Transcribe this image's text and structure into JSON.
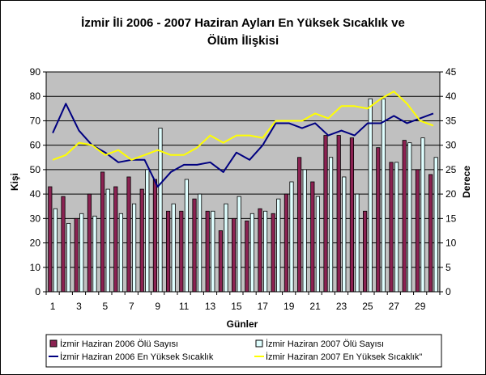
{
  "chart_data": {
    "type": "bar",
    "title_line1": "İzmir İli 2006 - 2007 Haziran Ayları En Yüksek Sıcaklık ve",
    "title_line2": "Ölüm İlişkisi",
    "xlabel": "Günler",
    "ylabel_left": "Kişi",
    "ylabel_right": "Derece",
    "ylim_left": [
      0,
      90
    ],
    "ylim_right": [
      0,
      45
    ],
    "y_ticks_left": [
      "0",
      "10",
      "20",
      "30",
      "40",
      "50",
      "60",
      "70",
      "80",
      "90"
    ],
    "y_ticks_right": [
      "0",
      "5",
      "10",
      "15",
      "20",
      "25",
      "30",
      "35",
      "40",
      "45"
    ],
    "x_ticks": [
      "1",
      "3",
      "5",
      "7",
      "9",
      "11",
      "13",
      "15",
      "17",
      "19",
      "21",
      "23",
      "25",
      "27",
      "29"
    ],
    "categories": [
      1,
      2,
      3,
      4,
      5,
      6,
      7,
      8,
      9,
      10,
      11,
      12,
      13,
      14,
      15,
      16,
      17,
      18,
      19,
      20,
      21,
      22,
      23,
      24,
      25,
      26,
      27,
      28,
      29,
      30
    ],
    "grid": true,
    "legend_position": "bottom",
    "series": [
      {
        "name": "İzmir Haziran 2006 Ölü Sayısı",
        "type": "bar",
        "axis": "left",
        "color": "#8B2252",
        "values": [
          43,
          39,
          30,
          40,
          49,
          43,
          47,
          42,
          46,
          33,
          33,
          38,
          33,
          25,
          30,
          29,
          34,
          32,
          40,
          55,
          45,
          64,
          64,
          63,
          33,
          59,
          53,
          62,
          50,
          48
        ]
      },
      {
        "name": "İzmir Haziran 2007 Ölü Sayısı",
        "type": "bar",
        "axis": "left",
        "color": "#E0FFFF",
        "values": [
          34,
          28,
          32,
          31,
          42,
          32,
          36,
          50,
          67,
          36,
          46,
          40,
          33,
          36,
          39,
          32,
          33,
          38,
          45,
          50,
          39,
          55,
          47,
          40,
          79,
          79,
          53,
          61,
          63,
          55
        ]
      },
      {
        "name": "İzmir Haziran 2006 En Yüksek Sıcaklık",
        "type": "line",
        "axis": "right",
        "color": "#000080",
        "values": [
          32.5,
          38.5,
          33,
          30,
          28.5,
          26.5,
          27,
          27,
          21.5,
          24.5,
          26,
          26,
          26.5,
          24.5,
          28.5,
          27,
          30,
          34.5,
          34.5,
          33.5,
          34.5,
          32,
          33,
          32,
          34.5,
          34.5,
          36,
          34.5,
          35.5,
          36.5
        ]
      },
      {
        "name": "İzmir Haziran 2007 En Yüksek Sıcaklık\"",
        "type": "line",
        "axis": "right",
        "color": "#FFFF00",
        "values": [
          27,
          28,
          30.5,
          30,
          28,
          29,
          27,
          28,
          29,
          28,
          28,
          29.5,
          32,
          30.5,
          32,
          32,
          31.5,
          35,
          35,
          35,
          36.5,
          35.5,
          38,
          38,
          37.5,
          39.5,
          41,
          38.5,
          35,
          34
        ]
      }
    ]
  }
}
